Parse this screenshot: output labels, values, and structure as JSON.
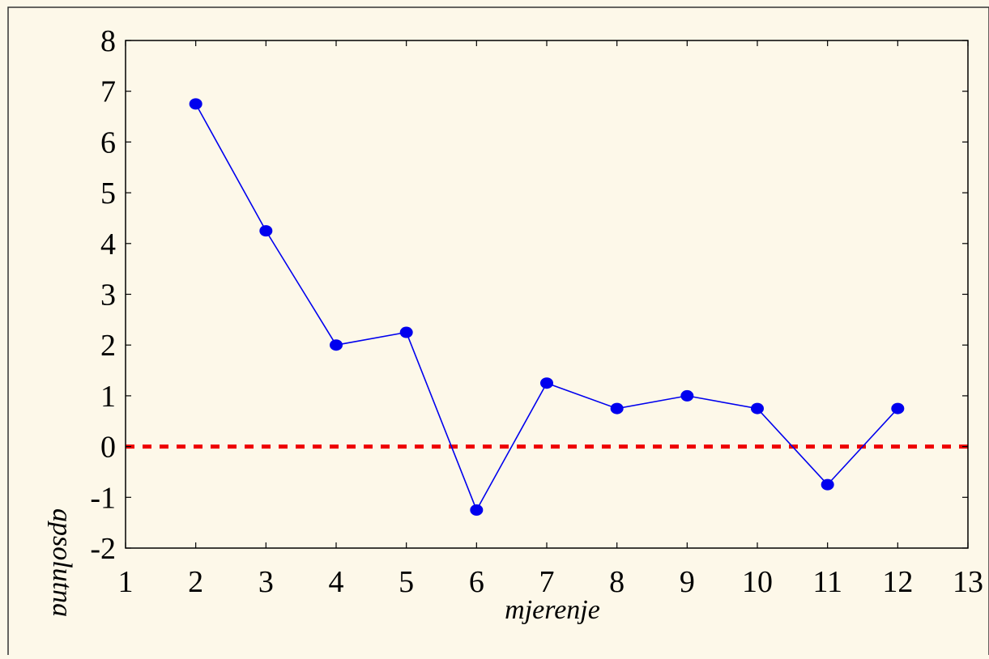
{
  "chart_data": {
    "type": "line",
    "title": "",
    "xlabel": "mjerenje",
    "ylabel": "apsolutna",
    "xlim": [
      1,
      13
    ],
    "ylim": [
      -2,
      8
    ],
    "x_ticks": [
      1,
      2,
      3,
      4,
      5,
      6,
      7,
      8,
      9,
      10,
      11,
      12,
      13
    ],
    "y_ticks": [
      -2,
      -1,
      0,
      1,
      2,
      3,
      4,
      5,
      6,
      7,
      8
    ],
    "grid": false,
    "series": [
      {
        "x": [
          2,
          3,
          4,
          5,
          6,
          7,
          8,
          9,
          10,
          11,
          12
        ],
        "y": [
          6.75,
          4.25,
          2.0,
          2.25,
          -1.25,
          1.25,
          0.75,
          1.0,
          0.75,
          -0.75,
          0.75
        ],
        "color": "#0000ee",
        "marker": "circle"
      }
    ],
    "reference_lines": [
      {
        "y": 0,
        "color": "#ee0000",
        "style": "dashed"
      }
    ]
  }
}
